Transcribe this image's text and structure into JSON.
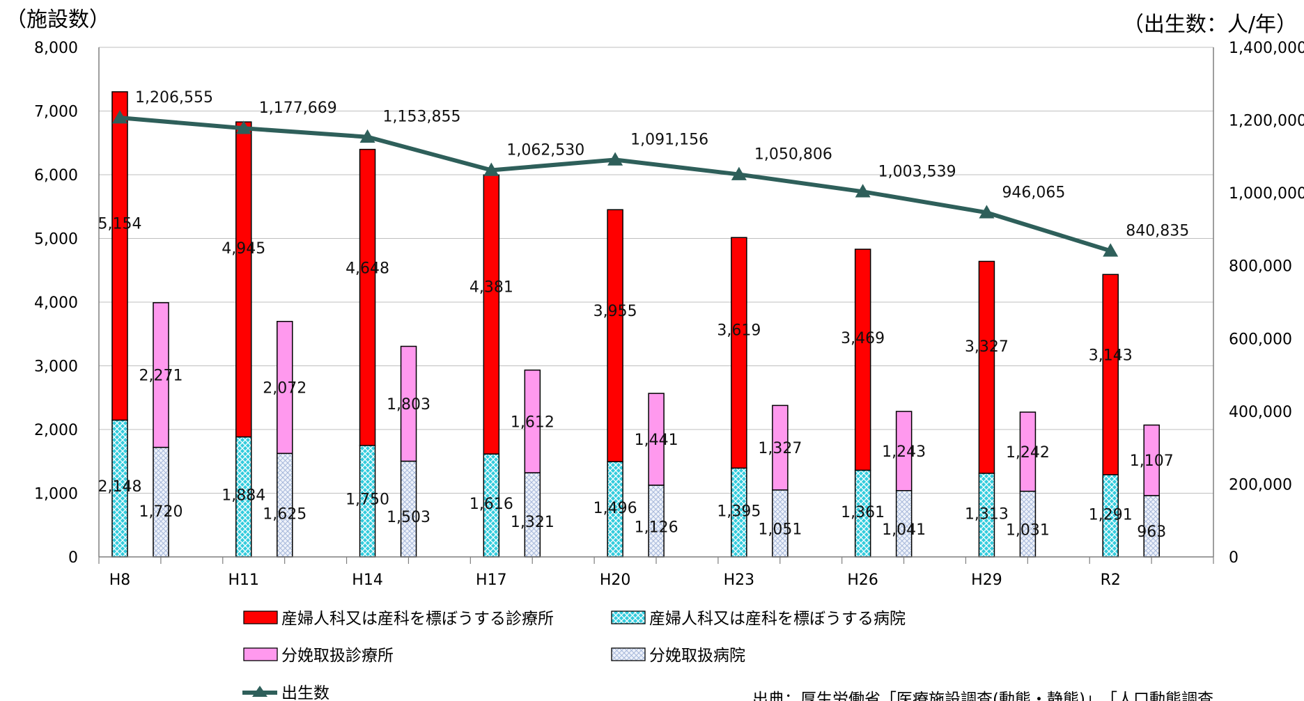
{
  "chart_data": {
    "type": "bar",
    "y_left_label": "（施設数）",
    "y_right_label": "（出生数：人/年）",
    "y_left_ticks": [
      "8,000",
      "7,000",
      "6,000",
      "5,000",
      "4,000",
      "3,000",
      "2,000",
      "1,000",
      "0"
    ],
    "y_right_ticks": [
      "1,400,000",
      "1,200,000",
      "1,000,000",
      "800,000",
      "600,000",
      "400,000",
      "200,000",
      "0"
    ],
    "ylim_left": [
      0,
      8000
    ],
    "ylim_right": [
      0,
      1400000
    ],
    "categories": [
      "H8",
      "H11",
      "H14",
      "H17",
      "H20",
      "H23",
      "H26",
      "H29",
      "R2"
    ],
    "series": [
      {
        "name": "産婦人科又は産科を標ぼうする病院",
        "values": [
          2148,
          1884,
          1750,
          1616,
          1496,
          1395,
          1361,
          1313,
          1291
        ],
        "labels": [
          "2,148",
          "1,884",
          "1,750",
          "1,616",
          "1,496",
          "1,395",
          "1,361",
          "1,313",
          "1,291"
        ]
      },
      {
        "name": "産婦人科又は産科を標ぼうする診療所",
        "values": [
          5154,
          4945,
          4648,
          4381,
          3955,
          3619,
          3469,
          3327,
          3143
        ],
        "labels": [
          "5,154",
          "4,945",
          "4,648",
          "4,381",
          "3,955",
          "3,619",
          "3,469",
          "3,327",
          "3,143"
        ]
      },
      {
        "name": "分娩取扱病院",
        "values": [
          1720,
          1625,
          1503,
          1321,
          1126,
          1051,
          1041,
          1031,
          963
        ],
        "labels": [
          "1,720",
          "1,625",
          "1,503",
          "1,321",
          "1,126",
          "1,051",
          "1,041",
          "1,031",
          "963"
        ]
      },
      {
        "name": "分娩取扱診療所",
        "values": [
          2271,
          2072,
          1803,
          1612,
          1441,
          1327,
          1243,
          1242,
          1107
        ],
        "labels": [
          "2,271",
          "2,072",
          "1,803",
          "1,612",
          "1,441",
          "1,327",
          "1,243",
          "1,242",
          "1,107"
        ]
      },
      {
        "name": "出生数",
        "values": [
          1206555,
          1177669,
          1153855,
          1062530,
          1091156,
          1050806,
          1003539,
          946065,
          840835
        ],
        "labels": [
          "1,206,555",
          "1,177,669",
          "1,153,855",
          "1,062,530",
          "1,091,156",
          "1,050,806",
          "1,003,539",
          "946,065",
          "840,835"
        ]
      }
    ],
    "colors": {
      "clinic": "#ff0000",
      "hospital": "#33ccdd",
      "delivery_clinic": "#ff99ee",
      "delivery_hospital": "#dde6f4",
      "births_line": "#2e5f5a"
    },
    "source_note": "出典：厚生労働省「医療施設調査(動態・静態)」、「人口動態調査"
  }
}
